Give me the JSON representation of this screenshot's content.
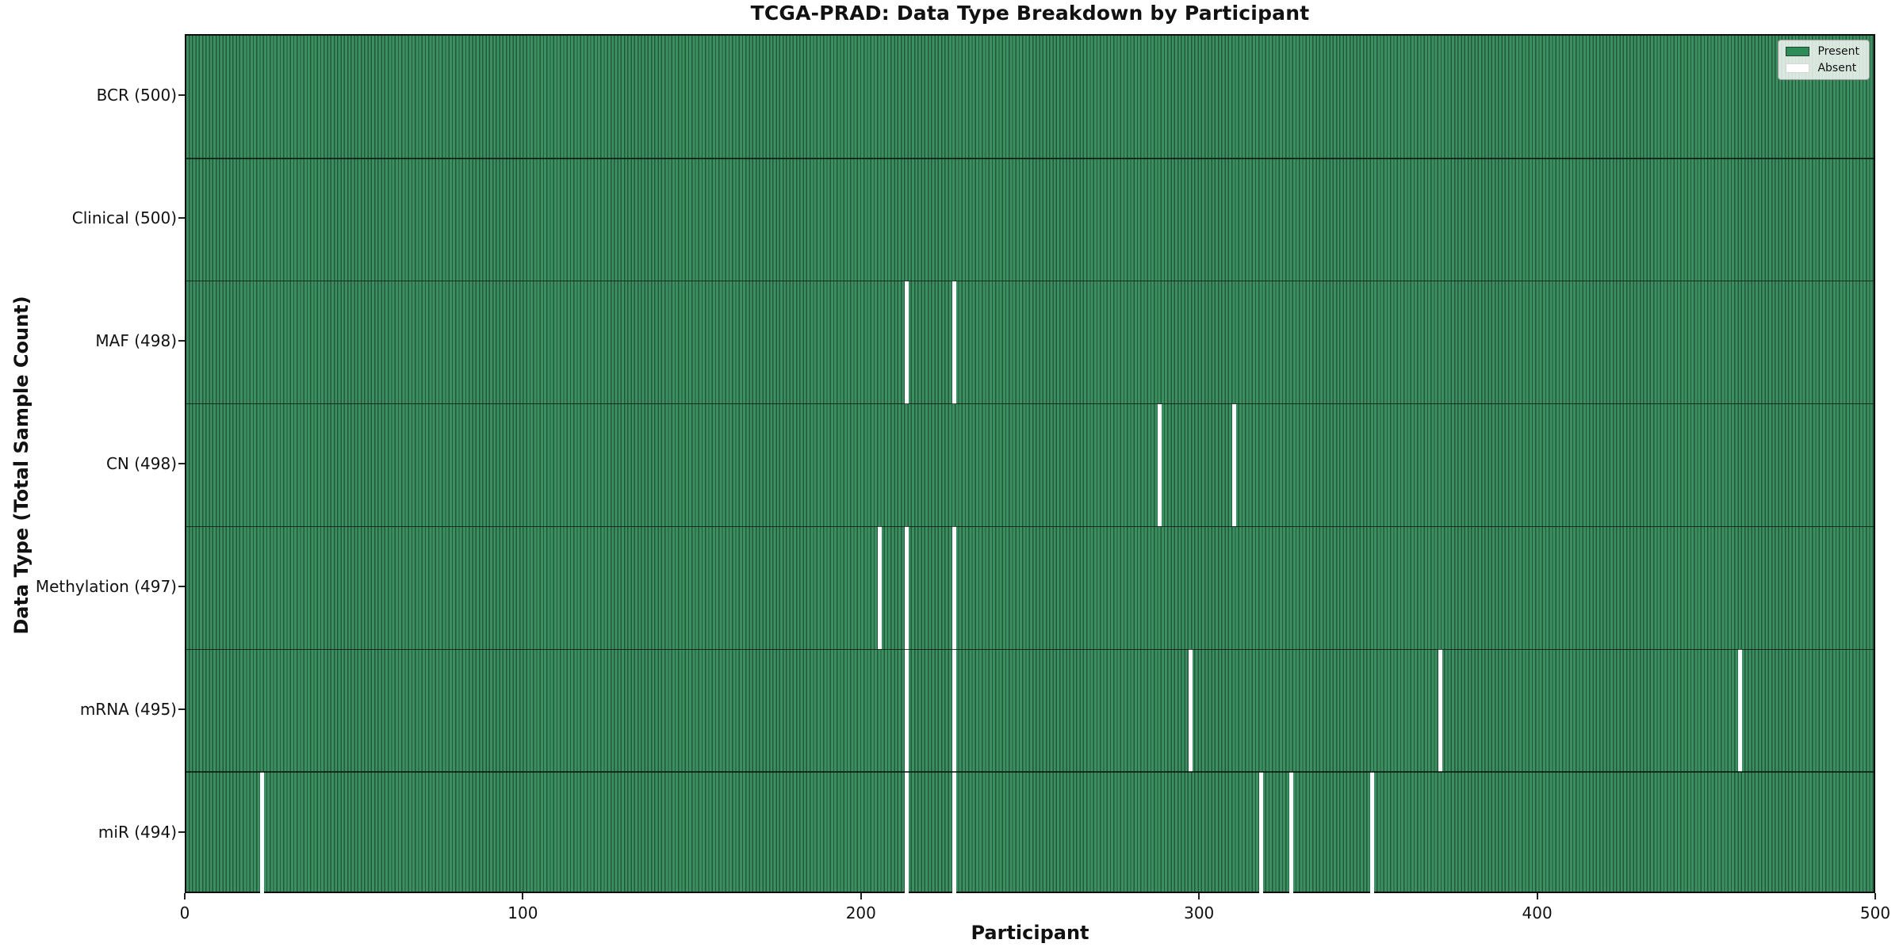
{
  "chart_data": {
    "type": "heatmap",
    "title": "TCGA-PRAD: Data Type Breakdown by Participant",
    "xlabel": "Participant",
    "ylabel": "Data Type (Total Sample Count)",
    "x_axis": {
      "range": [
        0,
        500
      ],
      "ticks": [
        0,
        100,
        200,
        300,
        400,
        500
      ]
    },
    "participants_total": 500,
    "legend": {
      "position": "upper right",
      "entries": [
        {
          "label": "Present",
          "color": "#2e8b57"
        },
        {
          "label": "Absent",
          "color": "#ffffff"
        }
      ]
    },
    "rows": [
      {
        "label": "BCR (500)",
        "data_type": "BCR",
        "present_count": 500,
        "absent_participants": []
      },
      {
        "label": "Clinical (500)",
        "data_type": "Clinical",
        "present_count": 500,
        "absent_participants": []
      },
      {
        "label": "MAF (498)",
        "data_type": "MAF",
        "present_count": 498,
        "absent_participants": [
          213,
          227
        ]
      },
      {
        "label": "CN (498)",
        "data_type": "CN",
        "present_count": 498,
        "absent_participants": [
          288,
          310
        ]
      },
      {
        "label": "Methylation (497)",
        "data_type": "Methylation",
        "present_count": 497,
        "absent_participants": [
          205,
          213,
          227
        ]
      },
      {
        "label": "mRNA (495)",
        "data_type": "mRNA",
        "present_count": 495,
        "absent_participants": [
          213,
          227,
          297,
          371,
          460
        ]
      },
      {
        "label": "miR (494)",
        "data_type": "miR",
        "present_count": 494,
        "absent_participants": [
          22,
          213,
          227,
          318,
          327,
          351
        ]
      }
    ],
    "colors": {
      "present_fill": "#2e8b57",
      "bar_edge": "#26573b",
      "absent": "#ffffff",
      "row_divider": "#14281a",
      "spine": "#0d0d0d"
    }
  }
}
